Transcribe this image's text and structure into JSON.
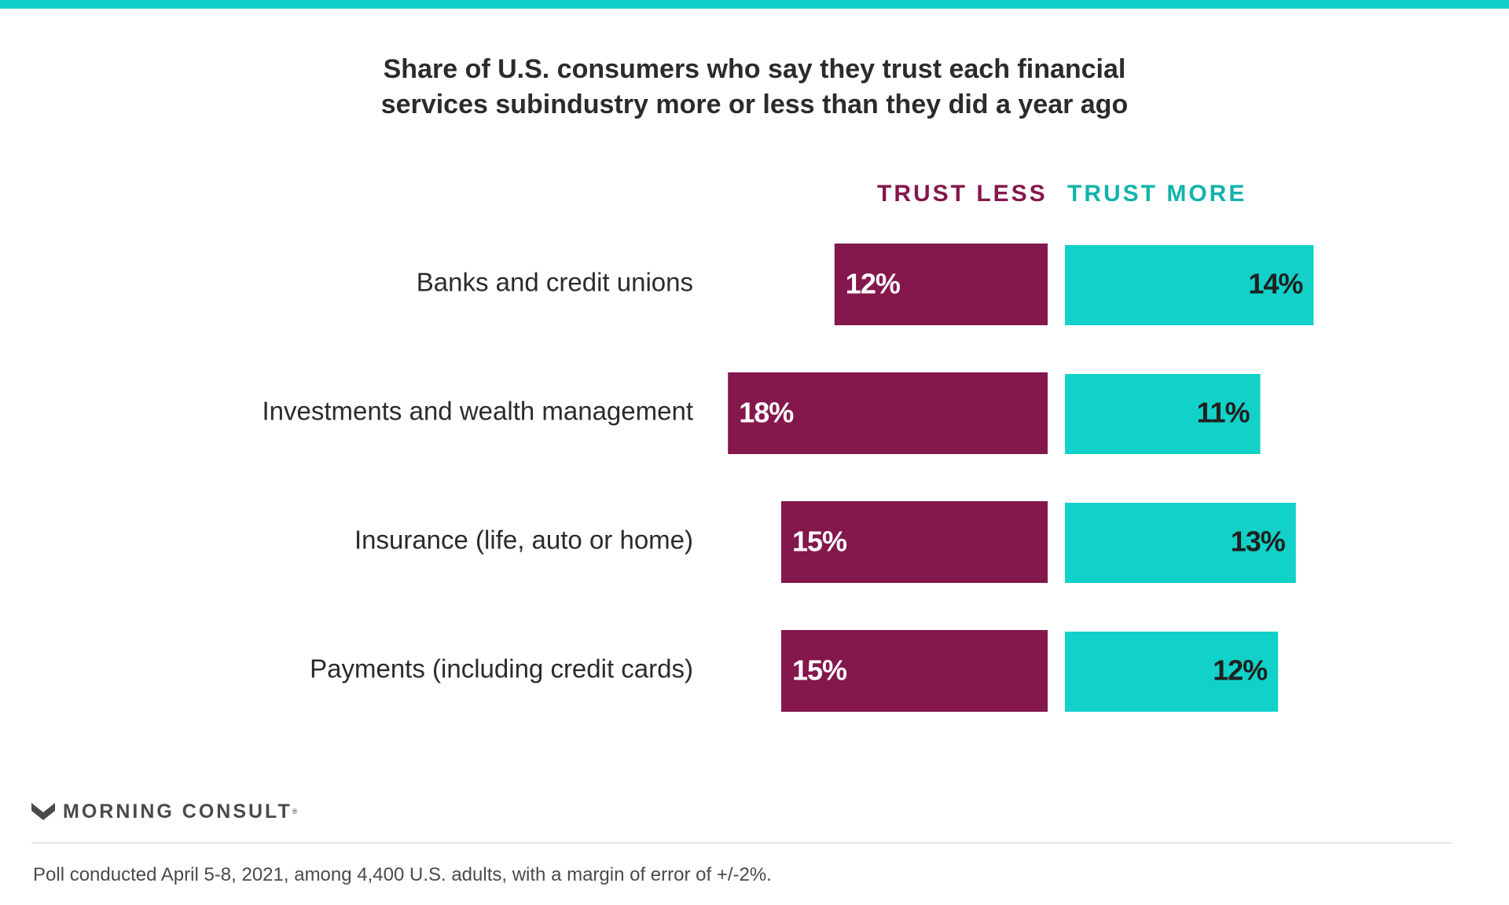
{
  "colors": {
    "accent": "#12d1c8",
    "trust_less": "#84174c",
    "trust_more": "#12d1c8"
  },
  "title_lines": [
    "Share of U.S. consumers who say they trust each financial",
    "services subindustry more or less than they did a year ago"
  ],
  "legend": {
    "less": "TRUST LESS",
    "more": "TRUST MORE"
  },
  "chart_data": {
    "type": "bar",
    "orientation": "horizontal-diverging",
    "title": "Share of U.S. consumers who say they trust each financial services subindustry more or less than they did a year ago",
    "categories": [
      "Banks and credit unions",
      "Investments and wealth management",
      "Insurance (life, auto or home)",
      "Payments (including credit cards)"
    ],
    "series": [
      {
        "name": "TRUST LESS",
        "values": [
          12,
          18,
          15,
          15
        ],
        "labels": [
          "12%",
          "18%",
          "15%",
          "15%"
        ],
        "color": "#84174c"
      },
      {
        "name": "TRUST MORE",
        "values": [
          14,
          11,
          13,
          12
        ],
        "labels": [
          "14%",
          "11%",
          "13%",
          "12%"
        ],
        "color": "#12d1c8"
      }
    ],
    "unit": "%",
    "legend_position": "top",
    "grid": false
  },
  "brand": {
    "name": "MORNING CONSULT",
    "reg_mark": "®"
  },
  "footnote": "Poll conducted April 5-8, 2021, among 4,400 U.S. adults, with a margin of error of +/-2%."
}
